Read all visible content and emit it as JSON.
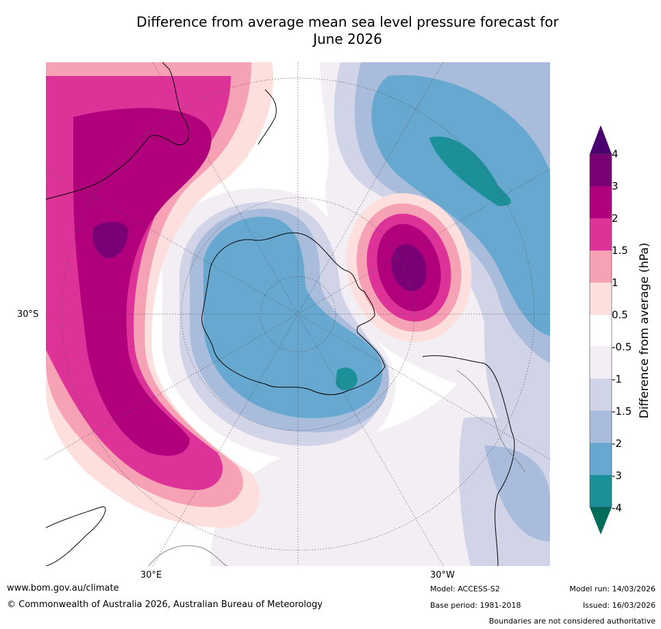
{
  "title_line1": "Difference from average mean sea level pressure forecast for",
  "title_line2": "June 2026",
  "map": {
    "projection": "south-polar-stereographic",
    "lat_label": "30°S",
    "lon_labels": {
      "east": "30°E",
      "west": "30°W"
    }
  },
  "colorbar": {
    "label": "Difference from average (hPa)",
    "ticks": [
      "4",
      "3",
      "2",
      "1.5",
      "1",
      "0.5",
      "-0.5",
      "-1",
      "-1.5",
      "-2",
      "-3",
      "-4"
    ],
    "colors": {
      "above_4": "#4b0070",
      "3_to_4": "#7a0075",
      "2_to_3": "#b0007b",
      "1.5_to_2": "#dd3399",
      "1_to_1.5": "#f7a1b5",
      "0.5_to_1": "#fde0dd",
      "-0.5_to_0.5": "#ffffff",
      "-1_to_-0.5": "#f3eef4",
      "-1.5_to_-1": "#d1d3e6",
      "-2_to_-1.5": "#a9bcdb",
      "-3_to_-2": "#66a8cf",
      "-4_to_-3": "#1c9099",
      "below_-4": "#016c59"
    }
  },
  "footer": {
    "website": "www.bom.gov.au/climate",
    "copyright": "© Commonwealth of Australia 2026, Australian Bureau of Meteorology",
    "model": "Model: ACCESS-S2",
    "base_period": "Base period: 1981-2018",
    "model_run": "Model run: 14/03/2026",
    "issued": "Issued: 16/03/2026",
    "disclaimer": "Boundaries are not considered authoritative"
  }
}
